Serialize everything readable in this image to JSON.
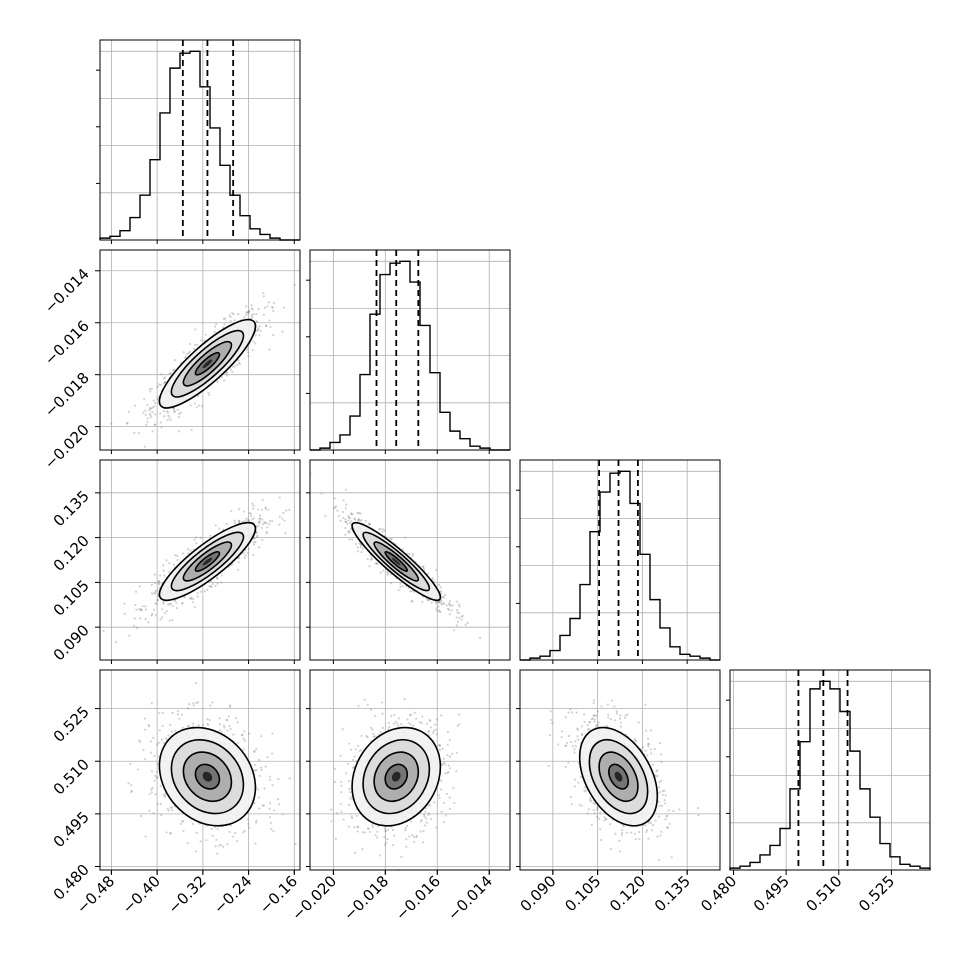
{
  "chart_data": {
    "type": "corner",
    "grid": true,
    "dimensions": [
      {
        "ticks": [
          -0.48,
          -0.4,
          -0.32,
          -0.24,
          -0.16
        ],
        "tick_labels": [
          "−0.48",
          "−0.40",
          "−0.32",
          "−0.24",
          "−0.16"
        ],
        "range": [
          -0.5,
          -0.15
        ],
        "quantiles": [
          -0.355,
          -0.312,
          -0.267
        ],
        "histogram": {
          "edges_range": [
            -0.5,
            -0.15
          ],
          "counts": [
            1,
            2,
            5,
            12,
            24,
            43,
            68,
            92,
            100,
            101,
            82,
            60,
            40,
            24,
            13,
            6,
            3,
            1,
            0,
            0
          ]
        }
      },
      {
        "ticks": [
          -0.02,
          -0.018,
          -0.016,
          -0.014
        ],
        "tick_labels": [
          "−0.020",
          "−0.018",
          "−0.016",
          "−0.014"
        ],
        "range": [
          -0.0209,
          -0.0132
        ],
        "quantiles": [
          -0.01834,
          -0.01758,
          -0.01673
        ],
        "histogram": {
          "edges_range": [
            -0.0209,
            -0.0132
          ],
          "counts": [
            0,
            1,
            4,
            8,
            18,
            40,
            72,
            93,
            99,
            100,
            89,
            66,
            41,
            20,
            10,
            6,
            2,
            1,
            0,
            0
          ]
        }
      },
      {
        "ticks": [
          0.09,
          0.105,
          0.12,
          0.135
        ],
        "tick_labels": [
          "0.090",
          "0.105",
          "0.120",
          "0.135"
        ],
        "range": [
          0.079,
          0.146
        ],
        "quantiles": [
          0.1055,
          0.112,
          0.1185
        ],
        "histogram": {
          "edges_range": [
            0.079,
            0.146
          ],
          "counts": [
            0,
            1,
            2,
            5,
            13,
            22,
            40,
            68,
            89,
            99,
            100,
            83,
            56,
            32,
            17,
            7,
            3,
            2,
            1,
            0
          ]
        }
      },
      {
        "ticks": [
          0.48,
          0.495,
          0.51,
          0.525
        ],
        "tick_labels": [
          "0.480",
          "0.495",
          "0.510",
          "0.525"
        ],
        "range": [
          0.479,
          0.536
        ],
        "quantiles": [
          0.4985,
          0.5056,
          0.5125
        ],
        "histogram": {
          "edges_range": [
            0.479,
            0.536
          ],
          "counts": [
            1,
            2,
            4,
            8,
            13,
            22,
            43,
            68,
            96,
            100,
            96,
            84,
            63,
            43,
            28,
            14,
            7,
            3,
            2,
            1
          ]
        }
      }
    ],
    "pairs": [
      {
        "row": 1,
        "col": 0,
        "center": [
          -0.312,
          -0.01758
        ],
        "sigma": [
          0.042,
          0.00085
        ],
        "corr": 0.85
      },
      {
        "row": 2,
        "col": 0,
        "center": [
          -0.312,
          0.112
        ],
        "sigma": [
          0.042,
          0.0065
        ],
        "corr": 0.85
      },
      {
        "row": 2,
        "col": 1,
        "center": [
          -0.01758,
          0.112
        ],
        "sigma": [
          0.00085,
          0.0065
        ],
        "corr": -0.92
      },
      {
        "row": 3,
        "col": 0,
        "center": [
          -0.312,
          0.5056
        ],
        "sigma": [
          0.042,
          0.007
        ],
        "corr": -0.22
      },
      {
        "row": 3,
        "col": 1,
        "center": [
          -0.01758,
          0.5056
        ],
        "sigma": [
          0.00085,
          0.007
        ],
        "corr": 0.2
      },
      {
        "row": 3,
        "col": 2,
        "center": [
          0.112,
          0.5056
        ],
        "sigma": [
          0.0065,
          0.007
        ],
        "corr": -0.4
      }
    ]
  }
}
